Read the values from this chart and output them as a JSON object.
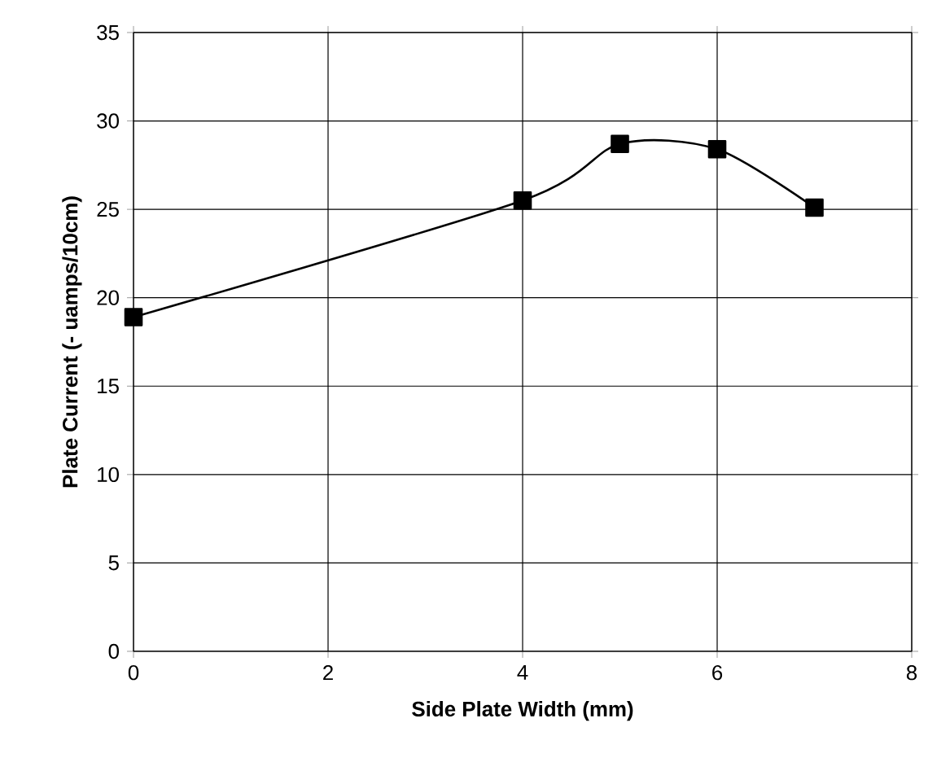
{
  "chart_data": {
    "type": "line",
    "xlabel": "Side Plate Width (mm)",
    "ylabel": "Plate Current (- uamps/10cm)",
    "x": [
      0,
      4,
      5,
      6,
      7
    ],
    "series": [
      {
        "color": "#000000",
        "values": [
          18.9,
          25.5,
          28.7,
          28.4,
          25.1
        ]
      }
    ],
    "xlim": [
      0,
      8
    ],
    "xticks": [
      0,
      2,
      4,
      6,
      8
    ],
    "ylim": [
      0,
      35
    ],
    "yticks": [
      0,
      5,
      10,
      15,
      20,
      25,
      30,
      35
    ],
    "grid": true,
    "marker": "square",
    "line_style": "solid"
  }
}
